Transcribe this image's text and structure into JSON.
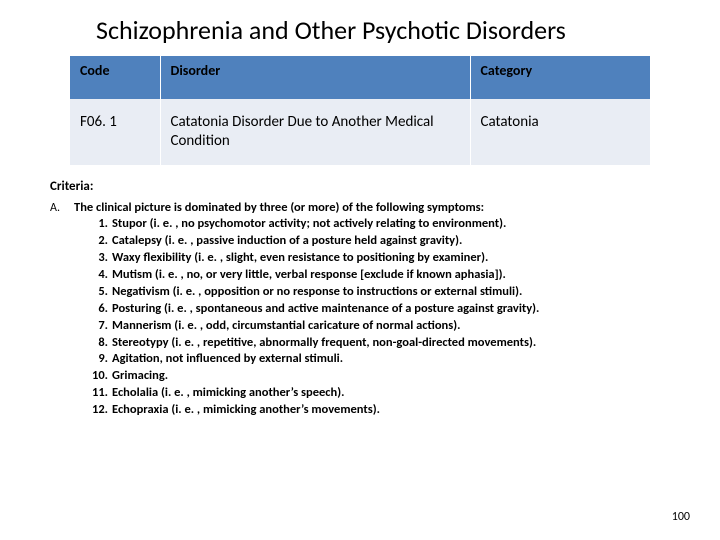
{
  "title": "Schizophrenia and Other Psychotic Disorders",
  "table": {
    "headers": {
      "code": "Code",
      "disorder": "Disorder",
      "category": "Category"
    },
    "row": {
      "code": "F06. 1",
      "disorder": "Catatonia Disorder Due to Another Medical Condition",
      "category": "Catatonia"
    }
  },
  "criteria_label": "Criteria:",
  "criterion": {
    "letter": "A.",
    "intro": "The clinical picture is dominated by three (or more) of the following symptoms:",
    "items": [
      "Stupor (i. e. , no psychomotor activity; not actively relating to environment).",
      "Catalepsy (i. e. , passive induction of a posture held against gravity).",
      "Waxy flexibility (i. e. , slight, even resistance to positioning by examiner).",
      "Mutism (i. e. , no, or very little, verbal response [exclude if known aphasia]).",
      "Negativism (i. e. , opposition or no response to instructions or external stimuli).",
      "Posturing (i. e. , spontaneous and active maintenance of a posture against gravity).",
      "Mannerism (i. e. , odd, circumstantial caricature of normal actions).",
      "Stereotypy (i. e. , repetitive, abnormally frequent, non-goal-directed movements).",
      "Agitation, not influenced by external stimuli.",
      "Grimacing.",
      "Echolalia (i. e. , mimicking another’s speech).",
      "Echopraxia (i. e. , mimicking another’s movements)."
    ]
  },
  "page_number": "100"
}
